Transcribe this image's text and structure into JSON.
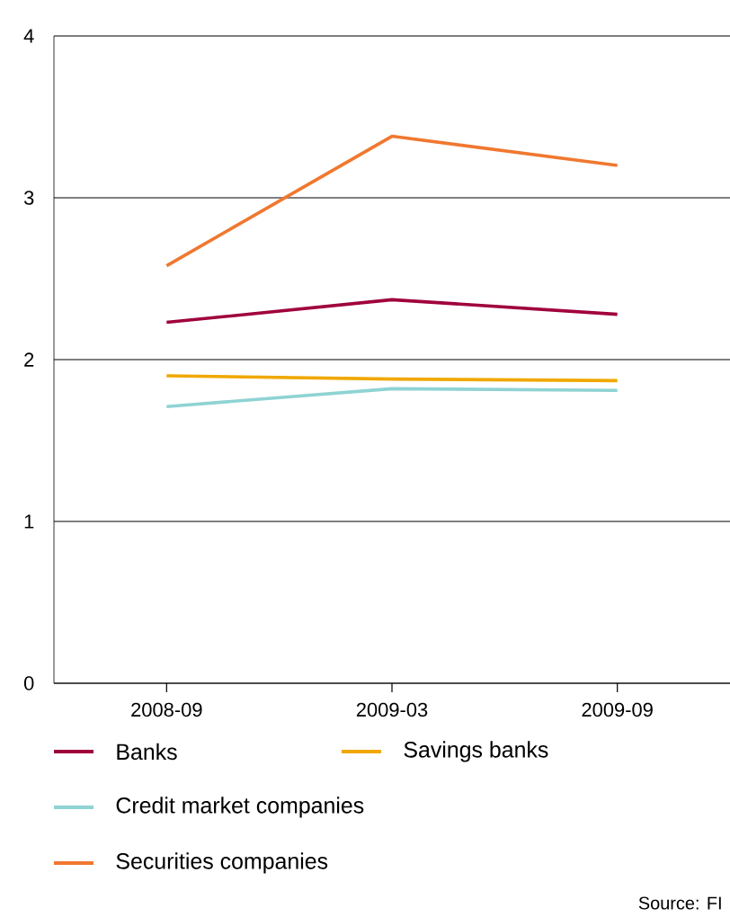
{
  "chart_data": {
    "type": "line",
    "categories": [
      "2008-09",
      "2009-03",
      "2009-09"
    ],
    "series": [
      {
        "name": "Banks",
        "color": "#a0003c",
        "values": [
          2.23,
          2.37,
          2.28
        ]
      },
      {
        "name": "Savings banks",
        "color": "#f0a800",
        "values": [
          1.9,
          1.88,
          1.87
        ]
      },
      {
        "name": "Credit market companies",
        "color": "#8fd3d3",
        "values": [
          1.71,
          1.82,
          1.81
        ]
      },
      {
        "name": "Securities companies",
        "color": "#f07830",
        "values": [
          2.58,
          3.38,
          3.2
        ]
      }
    ],
    "ylim": [
      0,
      4
    ],
    "yticks": [
      0,
      1,
      2,
      3,
      4
    ],
    "grid": "y",
    "legend": "bottom",
    "marker": "none",
    "line_style": "solid",
    "annotations": [
      "Source: FI"
    ]
  }
}
